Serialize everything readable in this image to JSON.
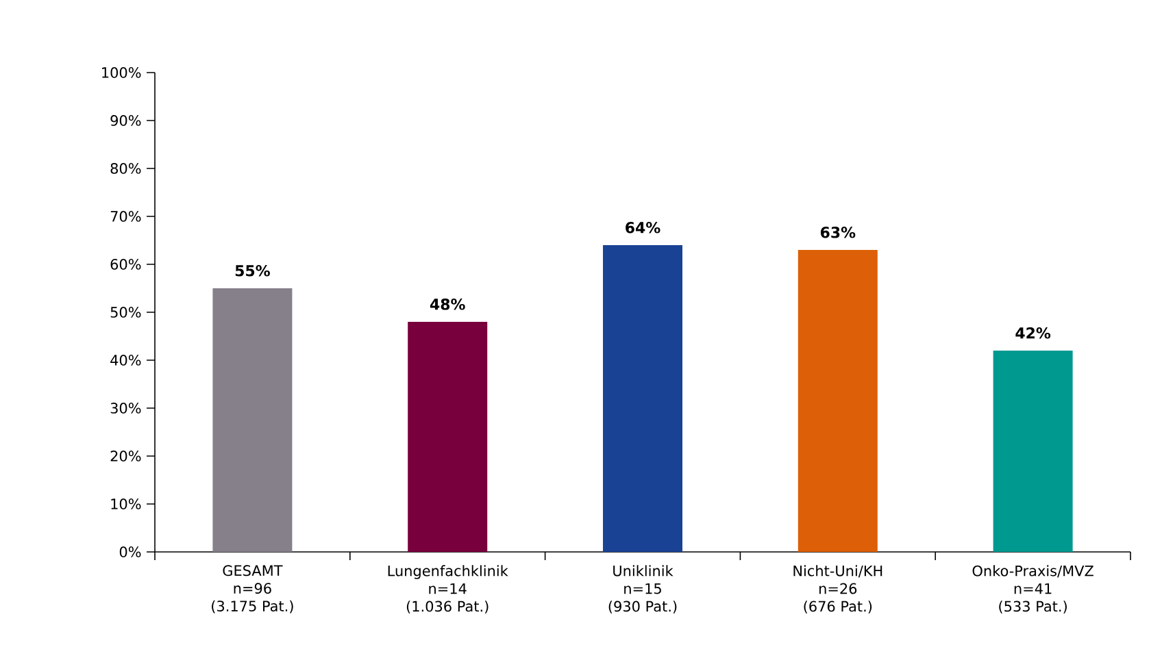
{
  "chart_data": {
    "type": "bar",
    "categories": [
      "GESAMT\nn=96\n(3.175 Pat.)",
      "Lungenfachklinik\nn=14\n(1.036 Pat.)",
      "Uniklinik\nn=15\n(930 Pat.)",
      "Nicht-Uni/KH\nn=26\n(676 Pat.)",
      "Onko-Praxis/MVZ\nn=41\n(533 Pat.)"
    ],
    "values": [
      55,
      48,
      64,
      63,
      42
    ],
    "colors": [
      "#858089",
      "#78003c",
      "#1a4294",
      "#dd5f07",
      "#009990"
    ],
    "ylim": [
      0,
      100
    ],
    "yticks": [
      {
        "value": 0,
        "label": "0%"
      },
      {
        "value": 10,
        "label": "10%"
      },
      {
        "value": 20,
        "label": "20%"
      },
      {
        "value": 30,
        "label": "30%"
      },
      {
        "value": 40,
        "label": "40%"
      },
      {
        "value": 50,
        "label": "50%"
      },
      {
        "value": 60,
        "label": "60%"
      },
      {
        "value": 70,
        "label": "70%"
      },
      {
        "value": 80,
        "label": "80%"
      },
      {
        "value": 90,
        "label": "90%"
      },
      {
        "value": 100,
        "label": "100%"
      }
    ],
    "value_labels": [
      "55%",
      "48%",
      "64%",
      "63%",
      "42%"
    ],
    "grid": false
  }
}
